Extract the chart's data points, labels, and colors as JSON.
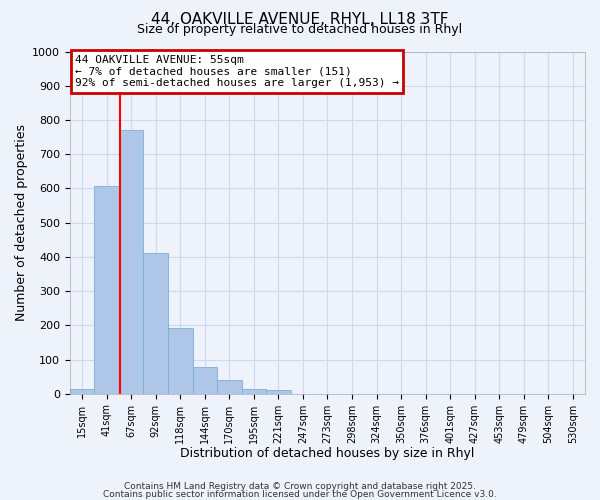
{
  "title_line1": "44, OAKVILLE AVENUE, RHYL, LL18 3TF",
  "title_line2": "Size of property relative to detached houses in Rhyl",
  "xlabel": "Distribution of detached houses by size in Rhyl",
  "ylabel": "Number of detached properties",
  "bin_labels": [
    "15sqm",
    "41sqm",
    "67sqm",
    "92sqm",
    "118sqm",
    "144sqm",
    "170sqm",
    "195sqm",
    "221sqm",
    "247sqm",
    "273sqm",
    "298sqm",
    "324sqm",
    "350sqm",
    "376sqm",
    "401sqm",
    "427sqm",
    "453sqm",
    "479sqm",
    "504sqm",
    "530sqm"
  ],
  "bar_values": [
    15,
    607,
    770,
    412,
    192,
    78,
    40,
    15,
    12,
    0,
    0,
    0,
    0,
    0,
    0,
    0,
    0,
    0,
    0,
    0,
    0
  ],
  "bar_color": "#aec6e8",
  "bar_edge_color": "#7aafd4",
  "ylim": [
    0,
    1000
  ],
  "yticks": [
    0,
    100,
    200,
    300,
    400,
    500,
    600,
    700,
    800,
    900,
    1000
  ],
  "annotation_box_text": "44 OAKVILLE AVENUE: 55sqm\n← 7% of detached houses are smaller (151)\n92% of semi-detached houses are larger (1,953) →",
  "annotation_box_color": "#cc0000",
  "grid_color": "#ccd9f0",
  "background_color": "#eef2fb",
  "footnote1": "Contains HM Land Registry data © Crown copyright and database right 2025.",
  "footnote2": "Contains public sector information licensed under the Open Government Licence v3.0."
}
